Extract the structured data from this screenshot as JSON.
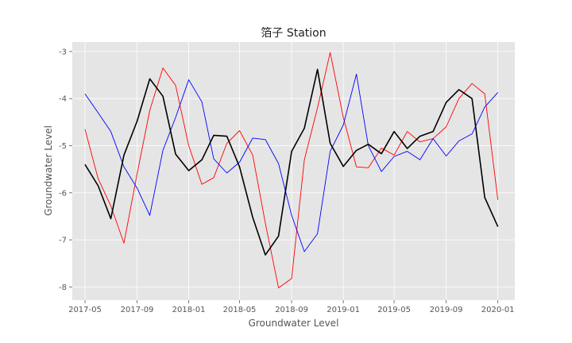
{
  "chart_data": {
    "type": "line",
    "title": "箔子 Station",
    "xlabel": "Groundwater Level",
    "ylabel": "Groundwater Level",
    "ylim": [
      -8.28,
      -2.8
    ],
    "xlim": [
      "2017-04-01",
      "2020-02-10"
    ],
    "x_tick_labels": [
      "2017-05",
      "2017-09",
      "2018-01",
      "2018-05",
      "2018-09",
      "2019-01",
      "2019-05",
      "2019-09",
      "2020-01"
    ],
    "y_tick_values": [
      -3,
      -4,
      -5,
      -6,
      -7,
      -8
    ],
    "grid": true,
    "background": "#e5e5e5",
    "x": [
      "2017-05-01",
      "2017-06-01",
      "2017-07-01",
      "2017-08-01",
      "2017-09-01",
      "2017-10-01",
      "2017-11-01",
      "2017-12-01",
      "2018-01-01",
      "2018-02-01",
      "2018-03-01",
      "2018-04-01",
      "2018-05-01",
      "2018-06-01",
      "2018-07-01",
      "2018-08-01",
      "2018-09-01",
      "2018-10-01",
      "2018-11-01",
      "2018-12-01",
      "2019-01-01",
      "2019-02-01",
      "2019-03-01",
      "2019-04-01",
      "2019-05-01",
      "2019-06-01",
      "2019-07-01",
      "2019-08-01",
      "2019-09-01",
      "2019-10-01",
      "2019-11-01",
      "2019-12-01",
      "2020-01-01"
    ],
    "series": [
      {
        "color": "#ff0000",
        "width": 0.9,
        "values": [
          -4.65,
          -5.7,
          -6.28,
          -7.07,
          -5.6,
          -4.25,
          -3.35,
          -3.72,
          -5.0,
          -5.82,
          -5.68,
          -4.95,
          -4.68,
          -5.2,
          -6.65,
          -8.02,
          -7.82,
          -5.3,
          -4.2,
          -3.02,
          -4.4,
          -5.45,
          -5.47,
          -5.05,
          -5.2,
          -4.7,
          -4.92,
          -4.85,
          -4.6,
          -4.0,
          -3.68,
          -3.9,
          -6.15
        ]
      },
      {
        "color": "#0000ff",
        "width": 0.9,
        "values": [
          -3.9,
          -4.3,
          -4.7,
          -5.45,
          -5.9,
          -6.48,
          -5.1,
          -4.4,
          -3.6,
          -4.07,
          -5.28,
          -5.58,
          -5.35,
          -4.84,
          -4.87,
          -5.38,
          -6.48,
          -7.25,
          -6.87,
          -5.12,
          -4.56,
          -3.48,
          -5.0,
          -5.55,
          -5.23,
          -5.12,
          -5.3,
          -4.85,
          -5.22,
          -4.9,
          -4.75,
          -4.18,
          -3.87
        ]
      },
      {
        "color": "#000000",
        "width": 1.6,
        "values": [
          -5.4,
          -5.85,
          -6.55,
          -5.2,
          -4.48,
          -3.58,
          -3.95,
          -5.18,
          -5.53,
          -5.3,
          -4.78,
          -4.8,
          -5.45,
          -6.52,
          -7.32,
          -6.92,
          -5.12,
          -4.63,
          -3.38,
          -4.95,
          -5.44,
          -5.1,
          -4.97,
          -5.17,
          -4.7,
          -5.06,
          -4.8,
          -4.7,
          -4.08,
          -3.81,
          -4.0,
          -6.1,
          -6.72
        ]
      }
    ]
  }
}
